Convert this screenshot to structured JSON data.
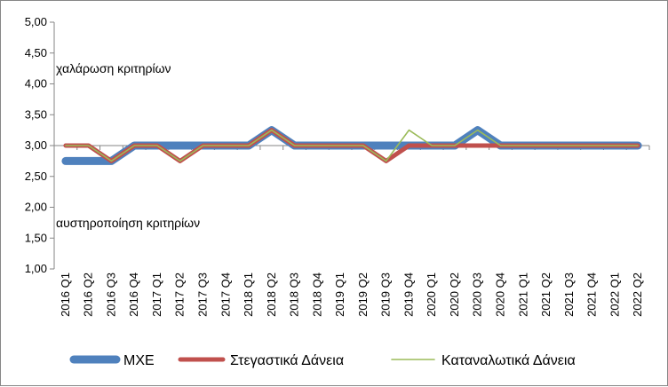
{
  "chart_data": {
    "type": "line",
    "title": "",
    "xlabel": "",
    "ylabel": "",
    "ylim": [
      1.0,
      5.0
    ],
    "ytick_step": 0.5,
    "grid": false,
    "legend_position": "bottom",
    "categories": [
      "2016 Q1",
      "2016 Q2",
      "2016 Q3",
      "2016 Q4",
      "2017 Q1",
      "2017 Q2",
      "2017 Q3",
      "2017 Q4",
      "2018 Q1",
      "2018 Q2",
      "2018 Q3",
      "2018 Q4",
      "2019 Q1",
      "2019 Q2",
      "2019 Q3",
      "2019 Q4",
      "2020 Q1",
      "2020 Q2",
      "2020 Q3",
      "2020 Q4",
      "2021 Q1",
      "2021 Q2",
      "2021 Q3",
      "2021 Q4",
      "2022 Q1",
      "2022 Q2"
    ],
    "series": [
      {
        "name": "ΜΧΕ",
        "color": "#4F81BD",
        "values": [
          2.75,
          2.75,
          2.75,
          3.0,
          3.0,
          3.0,
          3.0,
          3.0,
          3.0,
          3.25,
          3.0,
          3.0,
          3.0,
          3.0,
          3.0,
          3.0,
          3.0,
          3.0,
          3.25,
          3.0,
          3.0,
          3.0,
          3.0,
          3.0,
          3.0,
          3.0
        ]
      },
      {
        "name": "Στεγαστικά Δάνεια",
        "color": "#C0504D",
        "values": [
          3.0,
          3.0,
          2.75,
          3.0,
          3.0,
          2.75,
          3.0,
          3.0,
          3.0,
          3.25,
          3.0,
          3.0,
          3.0,
          3.0,
          2.75,
          3.0,
          3.0,
          3.0,
          3.0,
          3.0,
          3.0,
          3.0,
          3.0,
          3.0,
          3.0,
          3.0
        ]
      },
      {
        "name": "Καταναλωτικά Δάνεια",
        "color": "#9BBB59",
        "values": [
          3.0,
          3.0,
          2.75,
          3.0,
          3.0,
          2.75,
          3.0,
          3.0,
          3.0,
          3.25,
          3.0,
          3.0,
          3.0,
          3.0,
          2.75,
          3.25,
          3.0,
          3.0,
          3.25,
          3.0,
          3.0,
          3.0,
          3.0,
          3.0,
          3.0,
          3.0
        ]
      }
    ],
    "annotations": [
      {
        "text": "χαλάρωση κριτηρίων",
        "y": 4.25
      },
      {
        "text": "αυστηροποίηση κριτηρίων",
        "y": 1.75
      }
    ]
  }
}
